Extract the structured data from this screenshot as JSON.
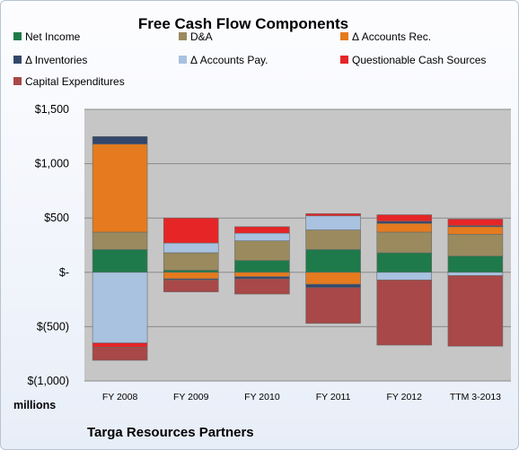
{
  "chart_data": {
    "type": "bar",
    "stacked": true,
    "title": "Free Cash Flow Components",
    "unit_label": "millions",
    "footer": "Targa Resources Partners",
    "categories": [
      "FY 2008",
      "FY 2009",
      "FY 2010",
      "FY 2011",
      "FY 2012",
      "TTM 3-2013"
    ],
    "ylim": [
      -1000,
      1500
    ],
    "yticks": [
      {
        "value": 1500,
        "label": "$1,500"
      },
      {
        "value": 1000,
        "label": "$1,000"
      },
      {
        "value": 500,
        "label": "$500"
      },
      {
        "value": 0,
        "label": "$-"
      },
      {
        "value": -500,
        "label": "$(500)"
      },
      {
        "value": -1000,
        "label": "$(1,000)"
      }
    ],
    "grid": true,
    "legend_position": "top",
    "series": [
      {
        "name": "Net Income",
        "color": "#1e7a4a",
        "values": [
          210,
          20,
          110,
          210,
          180,
          150
        ]
      },
      {
        "name": "D&A",
        "color": "#9a8a5e",
        "values": [
          160,
          160,
          180,
          180,
          190,
          200
        ]
      },
      {
        "name": "Δ Accounts Rec.",
        "color": "#e57b1e",
        "values": [
          810,
          -60,
          -40,
          -110,
          80,
          70
        ]
      },
      {
        "name": "Δ Inventories",
        "color": "#33476a",
        "values": [
          70,
          -10,
          -20,
          -30,
          20,
          10
        ]
      },
      {
        "name": "Δ Accounts Pay.",
        "color": "#a8c2e0",
        "values": [
          -650,
          90,
          70,
          130,
          -70,
          -30
        ]
      },
      {
        "name": "Questionable Cash Sources",
        "color": "#e52526",
        "values": [
          -40,
          230,
          60,
          20,
          60,
          60
        ]
      },
      {
        "name": "Capital Expenditures",
        "color": "#a84848",
        "values": [
          -120,
          -110,
          -140,
          -330,
          -600,
          -650
        ]
      }
    ]
  }
}
